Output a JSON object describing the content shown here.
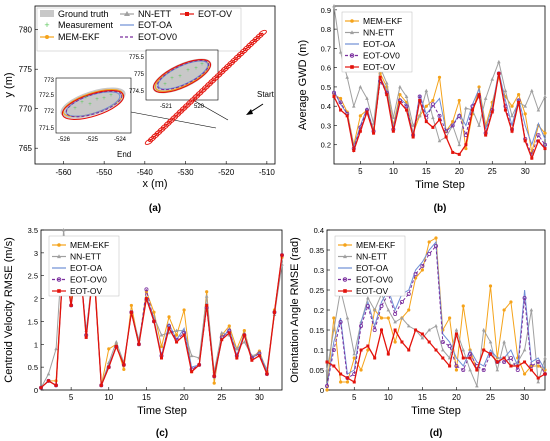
{
  "colors": {
    "MEM-EKF": "#f5a31a",
    "NN-ETT": "#a0a0a0",
    "EOT-OA": "#6f8fd6",
    "EOT-OV0": "#7a2e9e",
    "EOT-OV": "#e3120b",
    "Ground truth": "#c8c8c8",
    "Measurement": "#5ec85e"
  },
  "chart_data": [
    {
      "type": "scatter",
      "panel": "(a)",
      "xlabel": "x (m)",
      "ylabel": "y (m)",
      "xlim": [
        -567,
        -508
      ],
      "ylim": [
        763,
        783
      ],
      "xticks": [
        -560,
        -550,
        -540,
        -530,
        -520,
        -510
      ],
      "yticks": [
        765,
        770,
        775,
        780
      ],
      "legend": [
        "Ground truth",
        "NN-ETT",
        "Measurement",
        "EOT-OA",
        "MEM-EKF",
        "EOT-OV0",
        "EOT-OV"
      ],
      "annotations": [
        "Start",
        "End"
      ],
      "trajectory": {
        "start": [
          -511,
          779.6
        ],
        "end": [
          -539,
          765.8
        ]
      },
      "inset_left": {
        "xticks": [
          "-526",
          "-525",
          "-524"
        ],
        "yticks": [
          "771.5",
          "772",
          "772.5",
          "773"
        ]
      },
      "inset_right": {
        "xticks": [
          "-521",
          "520"
        ],
        "yticks": [
          "774.5",
          "775",
          "775.5"
        ]
      }
    },
    {
      "type": "line",
      "panel": "(b)",
      "xlabel": "Time Step",
      "ylabel": "Average GWD (m)",
      "xlim": [
        1,
        33
      ],
      "ylim": [
        0.1,
        0.92
      ],
      "xticks": [
        5,
        10,
        15,
        20,
        25,
        30
      ],
      "yticks": [
        0.2,
        0.3,
        0.4,
        0.5,
        0.6,
        0.7,
        0.8,
        0.9
      ],
      "x": [
        1,
        2,
        3,
        4,
        5,
        6,
        7,
        8,
        9,
        10,
        11,
        12,
        13,
        14,
        15,
        16,
        17,
        18,
        19,
        20,
        21,
        22,
        23,
        24,
        25,
        26,
        27,
        28,
        29,
        30,
        31,
        32,
        33
      ],
      "series": [
        {
          "name": "MEM-EKF",
          "values": [
            0.46,
            0.44,
            0.37,
            0.2,
            0.35,
            0.38,
            0.28,
            0.57,
            0.5,
            0.3,
            0.46,
            0.42,
            0.26,
            0.35,
            0.4,
            0.43,
            0.55,
            0.27,
            0.32,
            0.43,
            0.18,
            0.36,
            0.5,
            0.3,
            0.42,
            0.55,
            0.45,
            0.4,
            0.46,
            0.36,
            0.16,
            0.3,
            0.26
          ]
        },
        {
          "name": "NN-ETT",
          "values": [
            0.92,
            0.68,
            0.55,
            0.4,
            0.5,
            0.44,
            0.31,
            0.6,
            0.52,
            0.34,
            0.5,
            0.45,
            0.3,
            0.35,
            0.48,
            0.34,
            0.22,
            0.24,
            0.3,
            0.2,
            0.39,
            0.38,
            0.3,
            0.44,
            0.54,
            0.63,
            0.48,
            0.35,
            0.42,
            0.4,
            0.48,
            0.38,
            0.45
          ]
        },
        {
          "name": "EOT-OA",
          "values": [
            0.48,
            0.41,
            0.36,
            0.19,
            0.3,
            0.39,
            0.27,
            0.55,
            0.48,
            0.29,
            0.44,
            0.41,
            0.25,
            0.46,
            0.36,
            0.4,
            0.44,
            0.27,
            0.3,
            0.36,
            0.3,
            0.41,
            0.49,
            0.28,
            0.4,
            0.58,
            0.43,
            0.3,
            0.44,
            0.3,
            0.2,
            0.31,
            0.23
          ]
        },
        {
          "name": "EOT-OV0",
          "values": [
            0.47,
            0.42,
            0.36,
            0.18,
            0.29,
            0.38,
            0.27,
            0.53,
            0.47,
            0.28,
            0.43,
            0.4,
            0.25,
            0.45,
            0.34,
            0.41,
            0.35,
            0.27,
            0.3,
            0.35,
            0.25,
            0.4,
            0.45,
            0.26,
            0.38,
            0.57,
            0.4,
            0.28,
            0.43,
            0.23,
            0.15,
            0.25,
            0.2
          ]
        },
        {
          "name": "EOT-OV",
          "values": [
            0.45,
            0.38,
            0.35,
            0.17,
            0.27,
            0.37,
            0.26,
            0.55,
            0.46,
            0.27,
            0.42,
            0.38,
            0.24,
            0.43,
            0.32,
            0.29,
            0.33,
            0.24,
            0.16,
            0.15,
            0.2,
            0.38,
            0.46,
            0.25,
            0.37,
            0.57,
            0.38,
            0.27,
            0.42,
            0.22,
            0.13,
            0.22,
            0.18
          ]
        }
      ]
    },
    {
      "type": "line",
      "panel": "(c)",
      "xlabel": "Time Step",
      "ylabel": "Centroid Velocity RMSE (m/s)",
      "xlim": [
        1,
        33
      ],
      "ylim": [
        0,
        3.5
      ],
      "xticks": [
        5,
        10,
        15,
        20,
        25,
        30
      ],
      "yticks": [
        0,
        0.5,
        1,
        1.5,
        2,
        2.5,
        3,
        3.5
      ],
      "x": [
        1,
        2,
        3,
        4,
        5,
        6,
        7,
        8,
        9,
        10,
        11,
        12,
        13,
        14,
        15,
        16,
        17,
        18,
        19,
        20,
        21,
        22,
        23,
        24,
        25,
        26,
        27,
        28,
        29,
        30,
        31,
        32,
        33
      ],
      "series": [
        {
          "name": "MEM-EKF",
          "values": [
            0.05,
            0.2,
            0.2,
            2.95,
            2.0,
            3.1,
            1.2,
            2.85,
            0.1,
            0.9,
            1.0,
            0.45,
            1.85,
            1.0,
            2.15,
            1.7,
            0.95,
            1.6,
            1.2,
            1.75,
            0.4,
            0.55,
            2.15,
            0.15,
            1.2,
            1.4,
            0.9,
            1.3,
            0.7,
            0.85,
            0.4,
            1.75,
            2.9
          ]
        },
        {
          "name": "NN-ETT",
          "values": [
            0.05,
            0.35,
            0.9,
            3.5,
            1.85,
            3.0,
            1.3,
            2.65,
            0.1,
            0.6,
            1.05,
            0.6,
            1.7,
            1.1,
            2.0,
            1.6,
            1.2,
            1.25,
            1.3,
            1.3,
            0.75,
            0.7,
            2.05,
            0.4,
            1.25,
            1.2,
            0.9,
            1.05,
            0.75,
            0.8,
            0.45,
            1.65,
            2.75
          ]
        },
        {
          "name": "EOT-OA",
          "values": [
            0.05,
            0.2,
            0.1,
            2.9,
            1.85,
            3.1,
            1.25,
            2.7,
            0.1,
            0.55,
            0.95,
            0.55,
            1.7,
            1.0,
            2.05,
            1.55,
            0.75,
            1.45,
            1.1,
            1.35,
            0.5,
            0.55,
            1.9,
            0.25,
            1.1,
            1.35,
            0.75,
            1.25,
            0.7,
            0.8,
            0.4,
            1.7,
            2.9
          ]
        },
        {
          "name": "EOT-OV0",
          "values": [
            0.05,
            0.2,
            0.1,
            2.9,
            1.85,
            3.1,
            1.2,
            2.7,
            0.1,
            0.5,
            0.95,
            0.55,
            1.7,
            1.0,
            2.2,
            1.5,
            0.75,
            1.4,
            1.1,
            1.25,
            0.45,
            0.55,
            1.8,
            0.3,
            1.15,
            1.3,
            0.75,
            1.2,
            0.7,
            0.8,
            0.35,
            1.7,
            2.95
          ]
        },
        {
          "name": "EOT-OV",
          "values": [
            0.05,
            0.2,
            0.1,
            2.9,
            1.85,
            3.15,
            1.15,
            2.7,
            0.1,
            0.5,
            0.95,
            0.55,
            1.7,
            1.0,
            2.0,
            1.5,
            0.7,
            1.35,
            1.05,
            1.2,
            0.4,
            0.55,
            1.85,
            0.3,
            1.1,
            1.25,
            0.7,
            1.2,
            0.65,
            0.75,
            0.35,
            1.7,
            2.95
          ]
        }
      ]
    },
    {
      "type": "line",
      "panel": "(d)",
      "xlabel": "Time Step",
      "ylabel": "Orientation Angle RMSE (rad)",
      "xlim": [
        1,
        33
      ],
      "ylim": [
        0,
        0.4
      ],
      "xticks": [
        5,
        10,
        15,
        20,
        25,
        30
      ],
      "yticks": [
        0,
        0.05,
        0.1,
        0.15,
        0.2,
        0.25,
        0.3,
        0.35,
        0.4
      ],
      "x": [
        1,
        2,
        3,
        4,
        5,
        6,
        7,
        8,
        9,
        10,
        11,
        12,
        13,
        14,
        15,
        16,
        17,
        18,
        19,
        20,
        21,
        22,
        23,
        24,
        25,
        26,
        27,
        28,
        29,
        30,
        31,
        32,
        33
      ],
      "series": [
        {
          "name": "MEM-EKF",
          "values": [
            0.0,
            0.18,
            0.02,
            0.02,
            0.08,
            0.05,
            0.1,
            0.2,
            0.18,
            0.18,
            0.12,
            0.18,
            0.2,
            0.28,
            0.3,
            0.37,
            0.38,
            0.15,
            0.18,
            0.05,
            0.21,
            0.1,
            0.05,
            0.1,
            0.26,
            0.08,
            0.2,
            0.22,
            0.08,
            0.04,
            0.06,
            0.06,
            0.05
          ]
        },
        {
          "name": "NN-ETT",
          "values": [
            0.05,
            0.15,
            0.25,
            0.18,
            0.09,
            0.17,
            0.23,
            0.2,
            0.24,
            0.2,
            0.17,
            0.18,
            0.16,
            0.15,
            0.13,
            0.15,
            0.16,
            0.1,
            0.08,
            0.15,
            0.1,
            0.05,
            0.01,
            0.15,
            0.12,
            0.05,
            0.12,
            0.06,
            0.07,
            0.1,
            0.2,
            0.02,
            0.08
          ]
        },
        {
          "name": "EOT-OA",
          "values": [
            0.01,
            0.12,
            0.18,
            0.04,
            0.05,
            0.17,
            0.22,
            0.16,
            0.22,
            0.25,
            0.2,
            0.24,
            0.25,
            0.3,
            0.32,
            0.35,
            0.37,
            0.14,
            0.12,
            0.08,
            0.06,
            0.1,
            0.07,
            0.06,
            0.1,
            0.08,
            0.08,
            0.1,
            0.06,
            0.25,
            0.07,
            0.08,
            0.05
          ]
        },
        {
          "name": "EOT-OV0",
          "values": [
            0.01,
            0.1,
            0.17,
            0.03,
            0.04,
            0.16,
            0.21,
            0.15,
            0.21,
            0.24,
            0.19,
            0.22,
            0.24,
            0.29,
            0.31,
            0.34,
            0.36,
            0.12,
            0.11,
            0.06,
            0.05,
            0.09,
            0.06,
            0.05,
            0.09,
            0.07,
            0.07,
            0.08,
            0.05,
            0.23,
            0.06,
            0.07,
            0.04
          ]
        },
        {
          "name": "EOT-OV",
          "values": [
            0.07,
            0.06,
            0.04,
            0.03,
            0.02,
            0.1,
            0.11,
            0.08,
            0.15,
            0.09,
            0.15,
            0.12,
            0.1,
            0.15,
            0.14,
            0.12,
            0.1,
            0.08,
            0.06,
            0.14,
            0.08,
            0.08,
            0.05,
            0.1,
            0.09,
            0.07,
            0.08,
            0.06,
            0.06,
            0.07,
            0.05,
            0.03,
            0.04
          ]
        }
      ]
    }
  ],
  "panel_labels": [
    "(a)",
    "(b)",
    "(c)",
    "(d)"
  ]
}
